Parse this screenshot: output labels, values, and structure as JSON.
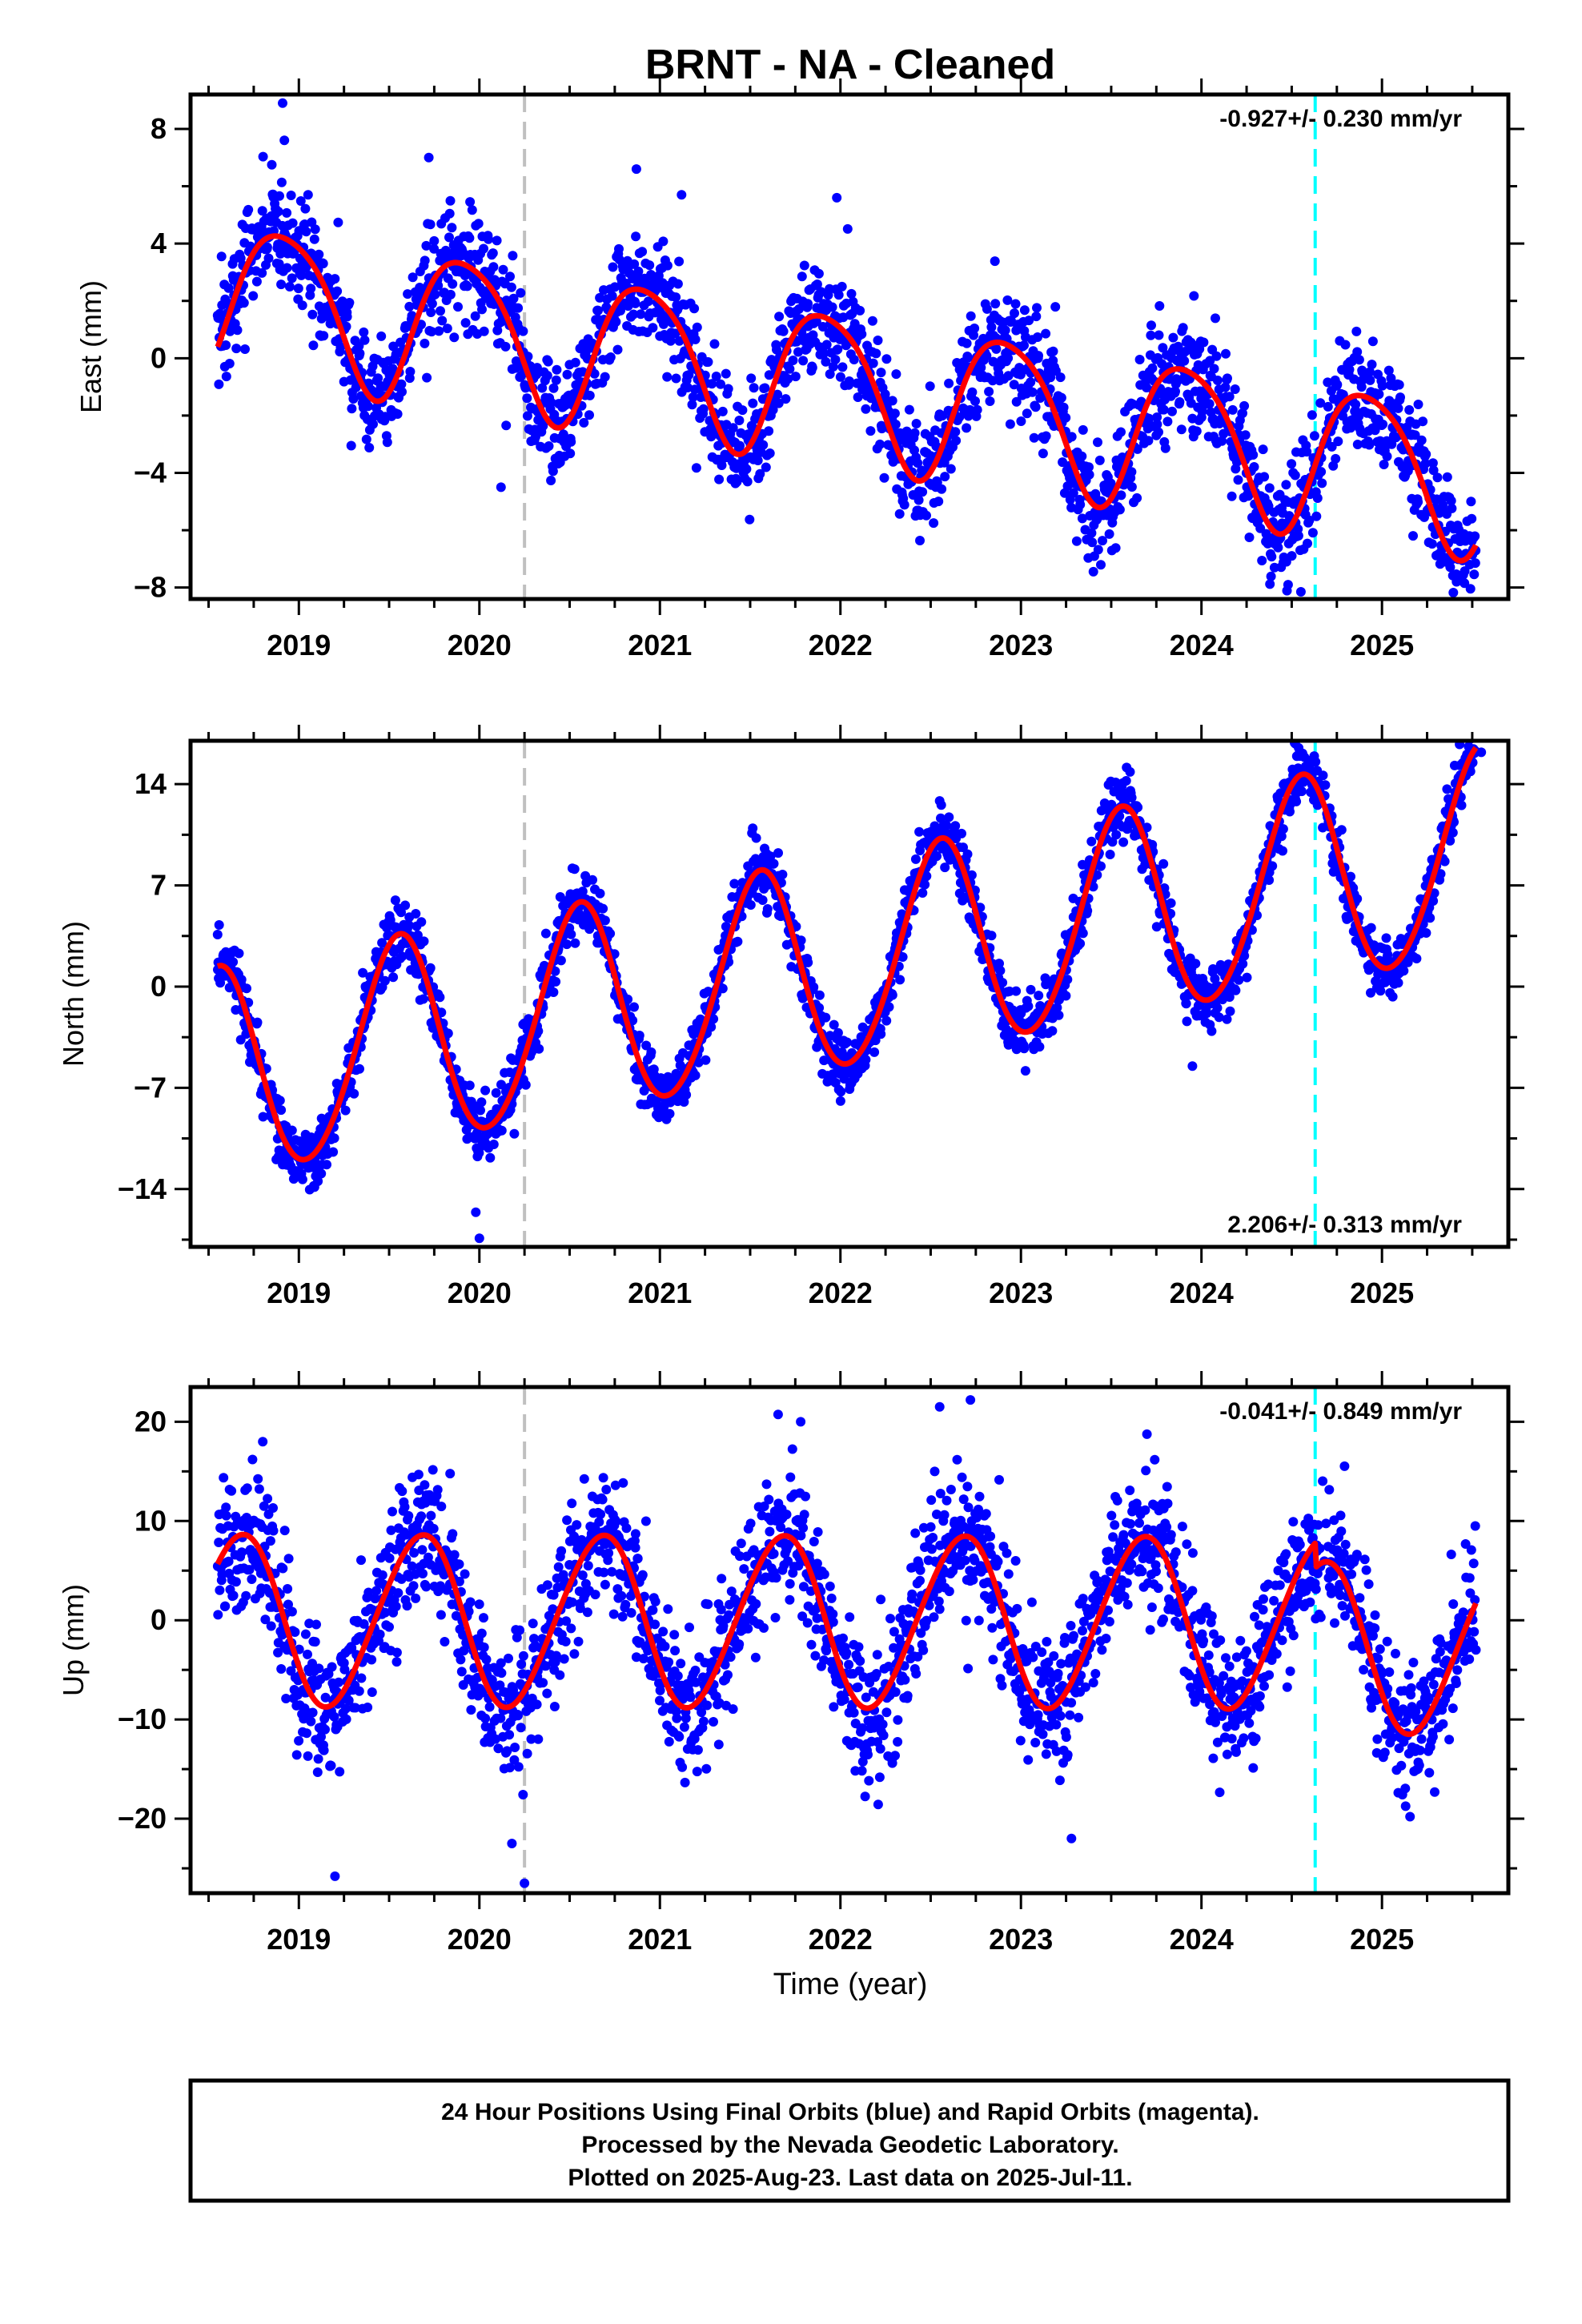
{
  "title": "BRNT  - NA - Cleaned",
  "xlabel": "Time (year)",
  "colors": {
    "final_orbits": "#0000ff",
    "rapid_orbits": "#ff00ff",
    "model_fit": "#ff0000",
    "equipment_change": "#c0c0c0",
    "earthquake_or_event": "#00ffff"
  },
  "footer": {
    "line1": "24 Hour Positions Using Final Orbits (blue) and Rapid Orbits (magenta).",
    "line2": "Processed by the Nevada Geodetic Laboratory.",
    "line3": "Plotted on 2025-Aug-23. Last data on 2025-Jul-11."
  },
  "chart_data": [
    {
      "type": "scatter",
      "component": "East",
      "ylabel": "East (mm)",
      "rate_label": "-0.927+/- 0.230 mm/yr",
      "rate_position": "top-right",
      "xlim": [
        2018.4,
        2025.7
      ],
      "ylim": [
        -8.4,
        9.2
      ],
      "xticks": [
        "2019",
        "2020",
        "2021",
        "2022",
        "2023",
        "2024",
        "2025"
      ],
      "yticks": [
        -8,
        -4,
        0,
        4,
        8
      ],
      "vertical_lines": [
        {
          "x": 2020.25,
          "style": "dashed",
          "color": "#c0c0c0"
        },
        {
          "x": 2024.63,
          "style": "dashed",
          "color": "#00ffff"
        }
      ],
      "model": {
        "rate_mm_per_yr": -0.927,
        "trend_value_at_2018.55": 2.3,
        "annual_amplitude": 2.6,
        "annual_peak_phase": 0.92,
        "semiannual_amplitude": 0.4,
        "semiannual_phase": 0.2,
        "offsets": [
          {
            "x": 2024.63,
            "value": 0.0
          }
        ],
        "fit_end": 2025.52
      },
      "scatter_noise_mm": 1.0,
      "outliers": [
        [
          2018.91,
          8.9
        ],
        [
          2018.92,
          7.6
        ],
        [
          2019.72,
          7.0
        ],
        [
          2020.87,
          6.6
        ],
        [
          2020.12,
          -4.5
        ],
        [
          2021.12,
          5.7
        ],
        [
          2021.98,
          5.6
        ],
        [
          2024.48,
          -7.9
        ]
      ]
    },
    {
      "type": "scatter",
      "component": "North",
      "ylabel": "North (mm)",
      "rate_label": "2.206+/- 0.313 mm/yr",
      "rate_position": "bottom-right",
      "xlim": [
        2018.4,
        2025.7
      ],
      "ylim": [
        -18.0,
        17.0
      ],
      "xticks": [
        "2019",
        "2020",
        "2021",
        "2022",
        "2023",
        "2024",
        "2025"
      ],
      "yticks": [
        -14,
        -7,
        0,
        7,
        14
      ],
      "vertical_lines": [
        {
          "x": 2020.25,
          "style": "dashed",
          "color": "#c0c0c0"
        },
        {
          "x": 2024.63,
          "style": "dashed",
          "color": "#00ffff"
        }
      ],
      "model": {
        "rate_mm_per_yr": 2.206,
        "trend_value_at_2018.55": -6.2,
        "annual_amplitude": 7.2,
        "annual_peak_phase": 0.55,
        "semiannual_amplitude": 0.5,
        "semiannual_phase": 0.1,
        "offsets": [
          {
            "x": 2024.63,
            "value": 0.0
          }
        ],
        "fit_end": 2025.52
      },
      "scatter_noise_mm": 1.1,
      "outliers": [
        [
          2018.55,
          3.6
        ],
        [
          2020.0,
          -17.4
        ],
        [
          2019.98,
          -15.6
        ],
        [
          2024.52,
          16.8
        ],
        [
          2025.48,
          16.6
        ],
        [
          2025.55,
          16.2
        ],
        [
          2023.95,
          -5.5
        ]
      ]
    },
    {
      "type": "scatter",
      "component": "Up",
      "ylabel": "Up (mm)",
      "rate_label": "-0.041+/- 0.849 mm/yr",
      "rate_position": "top-right",
      "xlim": [
        2018.4,
        2025.7
      ],
      "ylim": [
        -27.5,
        23.5
      ],
      "xticks": [
        "2019",
        "2020",
        "2021",
        "2022",
        "2023",
        "2024",
        "2025"
      ],
      "yticks": [
        -20,
        -10,
        0,
        10,
        20
      ],
      "vertical_lines": [
        {
          "x": 2020.25,
          "style": "dashed",
          "color": "#c0c0c0"
        },
        {
          "x": 2024.63,
          "style": "dashed",
          "color": "#00ffff"
        }
      ],
      "model": {
        "rate_mm_per_yr": -0.041,
        "trend_value_at_2018.55": 0.0,
        "annual_amplitude": 8.6,
        "annual_peak_phase": 0.67,
        "semiannual_amplitude": 0.6,
        "semiannual_phase": 0.3,
        "offsets": [
          {
            "x": 2024.63,
            "value": -2.5
          }
        ],
        "fit_end": 2025.52
      },
      "scatter_noise_mm": 3.4,
      "outliers": [
        [
          2019.2,
          -25.8
        ],
        [
          2020.25,
          -26.5
        ],
        [
          2020.18,
          -22.5
        ],
        [
          2022.72,
          22.2
        ],
        [
          2022.55,
          21.5
        ],
        [
          2023.28,
          -22.0
        ],
        [
          2018.8,
          18.0
        ],
        [
          2021.78,
          20.0
        ]
      ]
    }
  ]
}
